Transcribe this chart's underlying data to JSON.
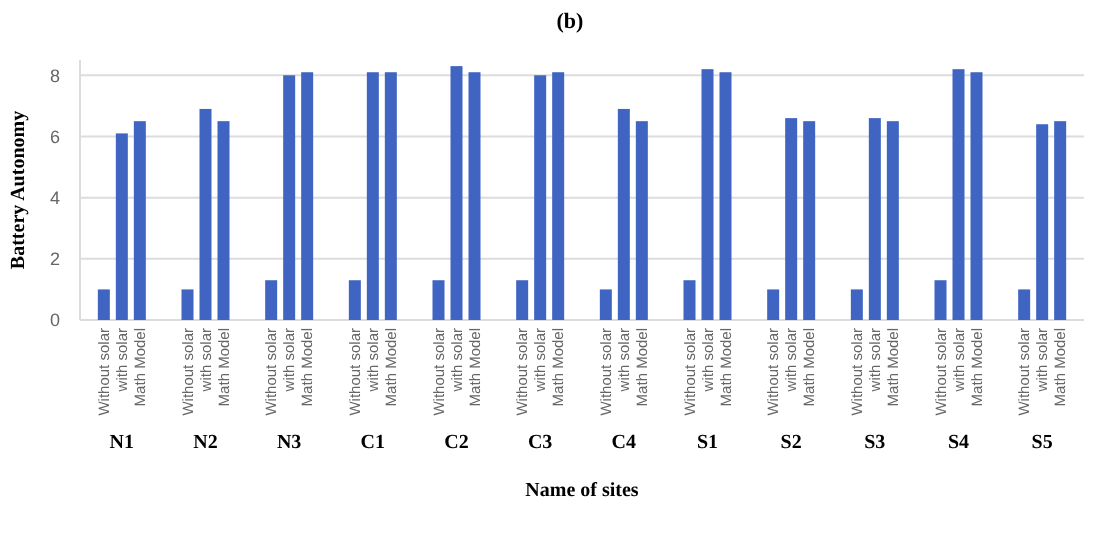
{
  "chart_data": {
    "type": "bar",
    "title": "(b)",
    "xlabel": "Name of sites",
    "ylabel": "Battery Autonomy",
    "categories": [
      "N1",
      "N2",
      "N3",
      "C1",
      "C2",
      "C3",
      "C4",
      "S1",
      "S2",
      "S3",
      "S4",
      "S5"
    ],
    "series": [
      {
        "name": "Without solar",
        "color": "#3f64c2",
        "values": [
          1.0,
          1.0,
          1.3,
          1.3,
          1.3,
          1.3,
          1.0,
          1.3,
          1.0,
          1.0,
          1.3,
          1.0
        ]
      },
      {
        "name": "with solar",
        "color": "#3f64c2",
        "values": [
          6.1,
          6.9,
          8.0,
          8.1,
          8.3,
          8.0,
          6.9,
          8.2,
          6.6,
          6.6,
          8.2,
          6.4
        ]
      },
      {
        "name": "Math Model",
        "color": "#3f64c2",
        "values": [
          6.5,
          6.5,
          8.1,
          8.1,
          8.1,
          8.1,
          6.5,
          8.1,
          6.5,
          6.5,
          8.1,
          6.5
        ]
      }
    ],
    "ylim": [
      0,
      8.5
    ],
    "yticks": [
      0,
      2,
      4,
      6,
      8
    ],
    "grid": "y"
  }
}
